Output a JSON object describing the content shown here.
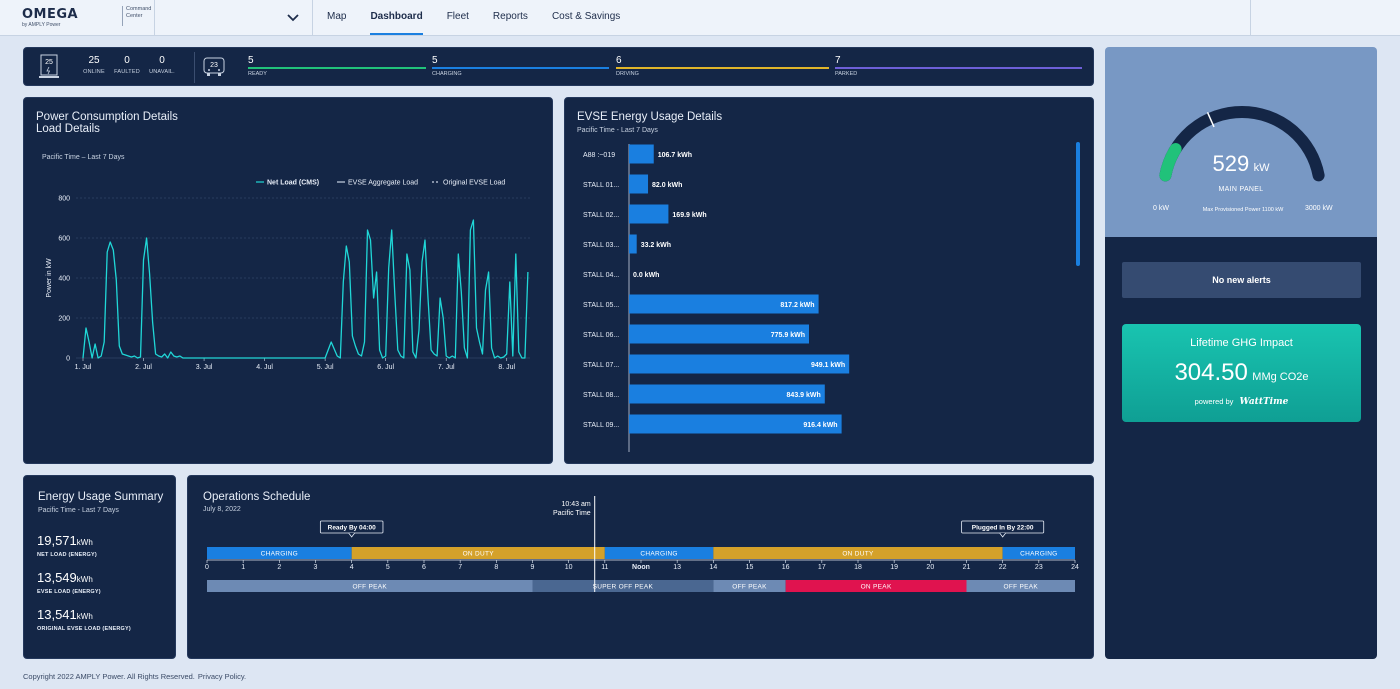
{
  "header": {
    "brand": "OMEGA",
    "by": "by AMPLY Power",
    "product": "Command Center",
    "nav": [
      "Map",
      "Dashboard",
      "Fleet",
      "Reports",
      "Cost & Savings"
    ],
    "active_nav": "Dashboard"
  },
  "status": {
    "charger_icon_num": "25",
    "fleet_icon_num": "23",
    "chargers": [
      {
        "value": "25",
        "label": "ONLINE"
      },
      {
        "value": "0",
        "label": "FAULTED"
      },
      {
        "value": "0",
        "label": "UNAVAIL."
      }
    ],
    "fleet": [
      {
        "value": "5",
        "label": "READY",
        "color": "#21c27a"
      },
      {
        "value": "5",
        "label": "CHARGING",
        "color": "#1a7fe0"
      },
      {
        "value": "6",
        "label": "DRIVING",
        "color": "#e0b52a"
      },
      {
        "value": "7",
        "label": "PARKED",
        "color": "#6d5fd8"
      }
    ]
  },
  "power": {
    "title1": "Power Consumption Details",
    "title2": "Load Details",
    "subtitle": "Pacific Time – Last 7 Days",
    "chart_data": {
      "type": "line",
      "ylabel": "Power in kW",
      "xlabel": "",
      "ylim": [
        0,
        800
      ],
      "yticks": [
        0,
        200,
        400,
        600,
        800
      ],
      "xticks": [
        "1. Jul",
        "2. Jul",
        "3. Jul",
        "4. Jul",
        "5. Jul",
        "6. Jul",
        "7. Jul",
        "8. Jul"
      ],
      "legend": [
        "Net Load (CMS)",
        "EVSE Aggregate Load",
        "Original EVSE Load"
      ],
      "legend_position": "top-right",
      "series": [
        {
          "name": "Net Load (CMS)",
          "color": "#20d7d7",
          "x": [
            1.0,
            1.05,
            1.1,
            1.15,
            1.2,
            1.25,
            1.3,
            1.35,
            1.4,
            1.45,
            1.5,
            1.55,
            1.6,
            1.65,
            1.7,
            1.75,
            1.8,
            1.85,
            1.9,
            1.95,
            2.0,
            2.05,
            2.1,
            2.15,
            2.2,
            2.25,
            2.3,
            2.35,
            2.4,
            2.45,
            2.5,
            2.55,
            2.6,
            2.65,
            2.7,
            2.8,
            3.0,
            3.5,
            4.0,
            4.5,
            5.0,
            5.1,
            5.2,
            5.25,
            5.3,
            5.35,
            5.4,
            5.45,
            5.5,
            5.55,
            5.6,
            5.65,
            5.7,
            5.75,
            5.8,
            5.85,
            5.9,
            5.95,
            6.0,
            6.05,
            6.1,
            6.15,
            6.2,
            6.25,
            6.3,
            6.35,
            6.4,
            6.45,
            6.5,
            6.55,
            6.6,
            6.65,
            6.7,
            6.75,
            6.8,
            6.85,
            6.9,
            6.95,
            7.0,
            7.05,
            7.1,
            7.15,
            7.2,
            7.25,
            7.3,
            7.35,
            7.4,
            7.45,
            7.5,
            7.55,
            7.6,
            7.65,
            7.7,
            7.75,
            7.8,
            7.85,
            7.9,
            7.95,
            8.0,
            8.05,
            8.1,
            8.15,
            8.2,
            8.25,
            8.3,
            8.35
          ],
          "values": [
            0,
            150,
            80,
            0,
            70,
            0,
            10,
            80,
            530,
            580,
            540,
            390,
            60,
            20,
            15,
            10,
            5,
            10,
            0,
            5,
            490,
            600,
            420,
            180,
            20,
            10,
            5,
            20,
            0,
            30,
            10,
            5,
            10,
            0,
            0,
            0,
            0,
            0,
            0,
            0,
            0,
            80,
            10,
            0,
            380,
            560,
            480,
            110,
            60,
            20,
            10,
            80,
            640,
            590,
            300,
            430,
            40,
            0,
            10,
            450,
            640,
            330,
            40,
            10,
            0,
            520,
            440,
            30,
            0,
            140,
            480,
            590,
            300,
            40,
            20,
            10,
            300,
            200,
            10,
            0,
            10,
            0,
            520,
            330,
            50,
            0,
            640,
            690,
            150,
            80,
            20,
            340,
            430,
            50,
            0,
            10,
            0,
            5,
            20,
            380,
            10,
            520,
            30,
            0,
            0,
            430
          ]
        }
      ]
    }
  },
  "evse": {
    "title": "EVSE Energy Usage Details",
    "subtitle": "Pacific Time - Last 7 Days",
    "chart_data": {
      "type": "bar",
      "orientation": "horizontal",
      "unit": "kWh",
      "categories": [
        "A88 :~019",
        "STALL 01...",
        "STALL 02...",
        "STALL 03...",
        "STALL 04...",
        "STALL 05...",
        "STALL 06...",
        "STALL 07...",
        "STALL 08...",
        "STALL 09..."
      ],
      "values": [
        106.7,
        82.0,
        169.9,
        33.2,
        0.0,
        817.2,
        775.9,
        949.1,
        843.9,
        916.4
      ],
      "labels": [
        "106.7 kWh",
        "82.0 kWh",
        "169.9 kWh",
        "33.2 kWh",
        "0.0 kWh",
        "817.2 kWh",
        "775.9 kWh",
        "949.1 kWh",
        "843.9 kWh",
        "916.4 kWh"
      ],
      "xlim": [
        0,
        1000
      ],
      "color": "#1a7fe0"
    }
  },
  "gauge": {
    "value": "529",
    "unit": "kW",
    "label": "MAIN PANEL",
    "min_label": "0 kW",
    "max_label": "3000 kW",
    "provision_label": "Max Provisioned Power 1100 kW",
    "value_fraction": 0.176,
    "marker_fraction": 0.367
  },
  "alerts": {
    "text": "No new alerts"
  },
  "ghg": {
    "title": "Lifetime GHG Impact",
    "value": "304.50",
    "unit": "MMg CO2e",
    "powered_by": "powered by",
    "partner": "WattTime"
  },
  "energy_summary": {
    "title": "Energy Usage Summary",
    "subtitle": "Pacific Time - Last 7 Days",
    "items": [
      {
        "value": "19,571",
        "unit": "kWh",
        "label": "NET LOAD (ENERGY)"
      },
      {
        "value": "13,549",
        "unit": "kWh",
        "label": "EVSE LOAD (ENERGY)"
      },
      {
        "value": "13,541",
        "unit": "kWh",
        "label": "ORIGINAL EVSE LOAD (ENERGY)"
      }
    ]
  },
  "ops": {
    "title": "Operations Schedule",
    "date": "July 8, 2022",
    "now_time": "10:43 am",
    "now_tz": "Pacific Time",
    "now_hour": 10.72,
    "ready_by": "Ready By 04:00",
    "ready_by_hour": 4,
    "plugged_in_by": "Plugged In By 22:00",
    "plugged_in_by_hour": 22,
    "hour_labels": [
      "0",
      "1",
      "2",
      "3",
      "4",
      "5",
      "6",
      "7",
      "8",
      "9",
      "10",
      "11",
      "Noon",
      "13",
      "14",
      "15",
      "16",
      "17",
      "18",
      "19",
      "20",
      "21",
      "22",
      "23",
      "24"
    ],
    "activities": [
      {
        "label": "CHARGING",
        "start": 0,
        "end": 4,
        "color": "#1a7fe0"
      },
      {
        "label": "ON DUTY",
        "start": 4,
        "end": 11,
        "color": "#d4a12a"
      },
      {
        "label": "CHARGING",
        "start": 11,
        "end": 14,
        "color": "#1a7fe0"
      },
      {
        "label": "ON DUTY",
        "start": 14,
        "end": 22,
        "color": "#d4a12a"
      },
      {
        "label": "CHARGING",
        "start": 22,
        "end": 24,
        "color": "#1a7fe0"
      }
    ],
    "rates": [
      {
        "label": "OFF PEAK",
        "start": 0,
        "end": 9,
        "color": "#6d8ab4"
      },
      {
        "label": "SUPER OFF PEAK",
        "start": 9,
        "end": 14,
        "color": "#4a6791"
      },
      {
        "label": "OFF PEAK",
        "start": 14,
        "end": 16,
        "color": "#6d8ab4"
      },
      {
        "label": "ON PEAK",
        "start": 16,
        "end": 21,
        "color": "#e0134f"
      },
      {
        "label": "OFF PEAK",
        "start": 21,
        "end": 24,
        "color": "#6d8ab4"
      }
    ]
  },
  "footer": {
    "copyright": "Copyright 2022 AMPLY Power. All Rights Reserved.",
    "privacy": "Privacy Policy."
  }
}
